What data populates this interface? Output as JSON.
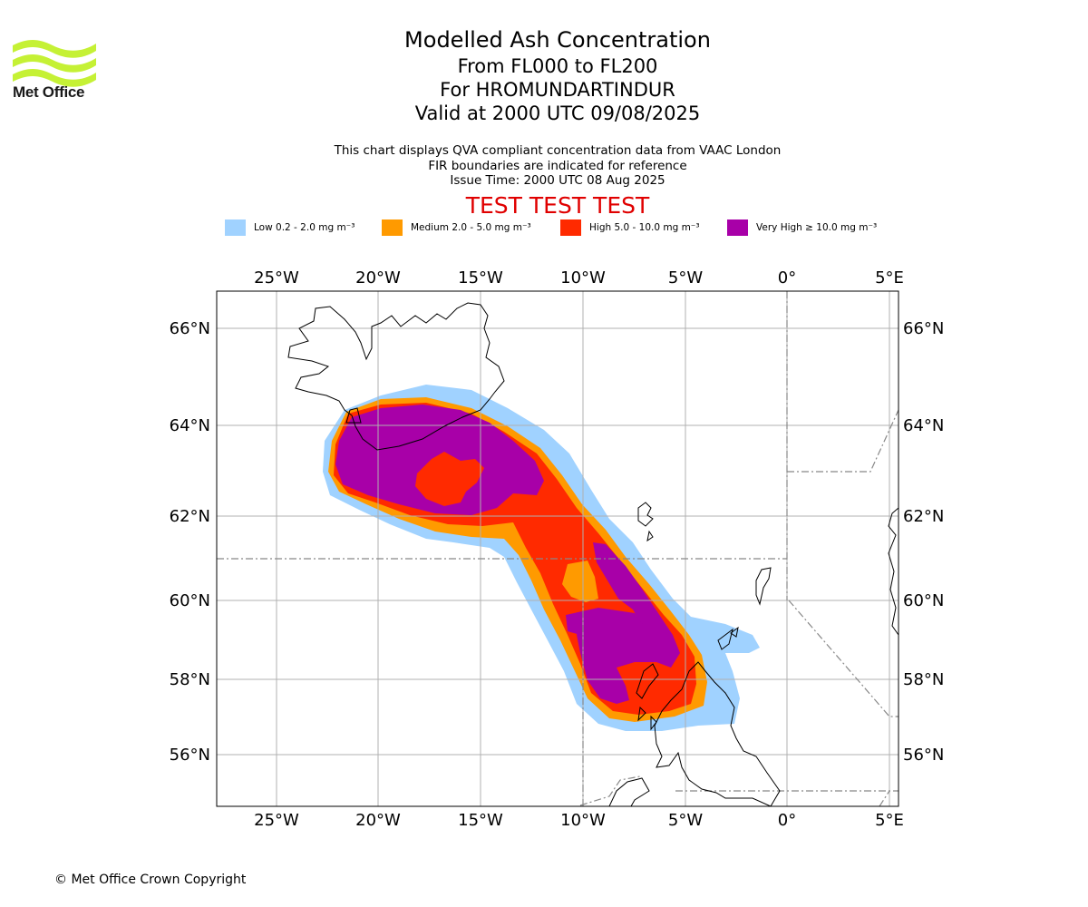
{
  "branding": {
    "logo_text": "Met Office",
    "logo_color": "#c5f135"
  },
  "title": {
    "line1": "Modelled Ash Concentration",
    "line2": "From FL000 to FL200",
    "line3": "For HROMUNDARTINDUR",
    "line4": "Valid at 2000 UTC 09/08/2025"
  },
  "subtitle": {
    "line1": "This chart displays QVA compliant concentration data from VAAC London",
    "line2": "FIR boundaries are indicated for reference",
    "line3": "Issue Time: 2000 UTC 08 Aug 2025"
  },
  "test_banner": {
    "text": "TEST TEST TEST",
    "color": "#e00000"
  },
  "legend": [
    {
      "label": "Low 0.2 - 2.0 mg m⁻³",
      "color": "#a0d2ff"
    },
    {
      "label": "Medium 2.0 - 5.0 mg m⁻³",
      "color": "#ff9a00"
    },
    {
      "label": "High 5.0 - 10.0 mg m⁻³",
      "color": "#ff2a00"
    },
    {
      "label": "Very High  ≥  10.0 mg m⁻³",
      "color": "#a800a8"
    }
  ],
  "axes": {
    "lon_labels": [
      "25°W",
      "20°W",
      "15°W",
      "10°W",
      "5°W",
      "0°",
      "5°E"
    ],
    "lat_labels": [
      "66°N",
      "64°N",
      "62°N",
      "60°N",
      "58°N",
      "56°N"
    ]
  },
  "footer": {
    "copyright": "© Met Office Crown Copyright"
  }
}
